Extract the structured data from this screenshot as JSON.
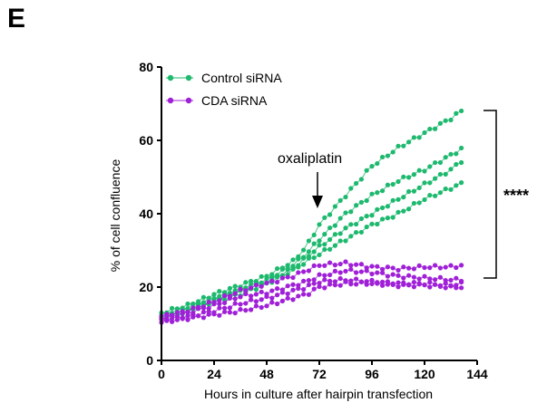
{
  "panel_label": "E",
  "chart_data": {
    "type": "line",
    "xlabel": "Hours in culture after hairpin transfection",
    "ylabel": "% of cell confluence",
    "xlim": [
      0,
      144
    ],
    "ylim": [
      0,
      80
    ],
    "x_ticks": [
      0,
      24,
      48,
      72,
      96,
      120,
      144
    ],
    "y_ticks": [
      0,
      20,
      40,
      60,
      80
    ],
    "grid": false,
    "legend_position": "top-left",
    "legend": [
      {
        "label": "Control siRNA",
        "color": "#1db96e"
      },
      {
        "label": "CDA siRNA",
        "color": "#a020d8"
      }
    ],
    "annotation": {
      "text": "oxaliplatin",
      "x": 72,
      "arrow_tip_y": 40
    },
    "significance": {
      "text": "****",
      "y_range": [
        21,
        68
      ]
    },
    "x": [
      0,
      12,
      24,
      36,
      48,
      60,
      66,
      72,
      84,
      96,
      108,
      120,
      132,
      138
    ],
    "series": [
      {
        "group": "Control siRNA",
        "color": "#1db96e",
        "values": [
          13,
          15,
          18,
          20.5,
          23,
          27,
          31,
          37,
          45,
          53,
          58,
          62,
          66,
          68.5
        ]
      },
      {
        "group": "Control siRNA",
        "color": "#1db96e",
        "values": [
          12.5,
          14.5,
          17,
          19.5,
          22,
          26,
          29,
          33,
          40,
          45,
          49,
          52,
          56,
          58
        ]
      },
      {
        "group": "Control siRNA",
        "color": "#1db96e",
        "values": [
          12,
          14,
          16.5,
          19,
          21.5,
          25,
          28,
          31,
          36,
          40,
          44,
          48,
          52,
          55
        ]
      },
      {
        "group": "Control siRNA",
        "color": "#1db96e",
        "values": [
          11.5,
          13.5,
          16,
          18,
          21,
          24.5,
          27,
          29,
          33,
          37,
          40,
          44,
          47,
          48.5
        ]
      },
      {
        "group": "CDA siRNA",
        "color": "#a020d8",
        "values": [
          12,
          13.5,
          16,
          19,
          21,
          23,
          24.5,
          26,
          26.5,
          25.5,
          25,
          25.5,
          25.5,
          26
        ]
      },
      {
        "group": "CDA siRNA",
        "color": "#a020d8",
        "values": [
          11.5,
          13,
          15,
          17.5,
          18.5,
          20.5,
          21.5,
          23,
          24.5,
          24,
          23,
          22.5,
          22,
          22
        ]
      },
      {
        "group": "CDA siRNA",
        "color": "#a020d8",
        "values": [
          11,
          12,
          13.5,
          15.5,
          17,
          19,
          20,
          21.5,
          22,
          21.5,
          21,
          21,
          20.5,
          21
        ]
      },
      {
        "group": "CDA siRNA",
        "color": "#a020d8",
        "values": [
          10.5,
          11.5,
          12.5,
          13.5,
          15,
          17,
          18,
          20,
          21,
          21,
          20.5,
          20.5,
          20,
          20
        ]
      }
    ]
  }
}
